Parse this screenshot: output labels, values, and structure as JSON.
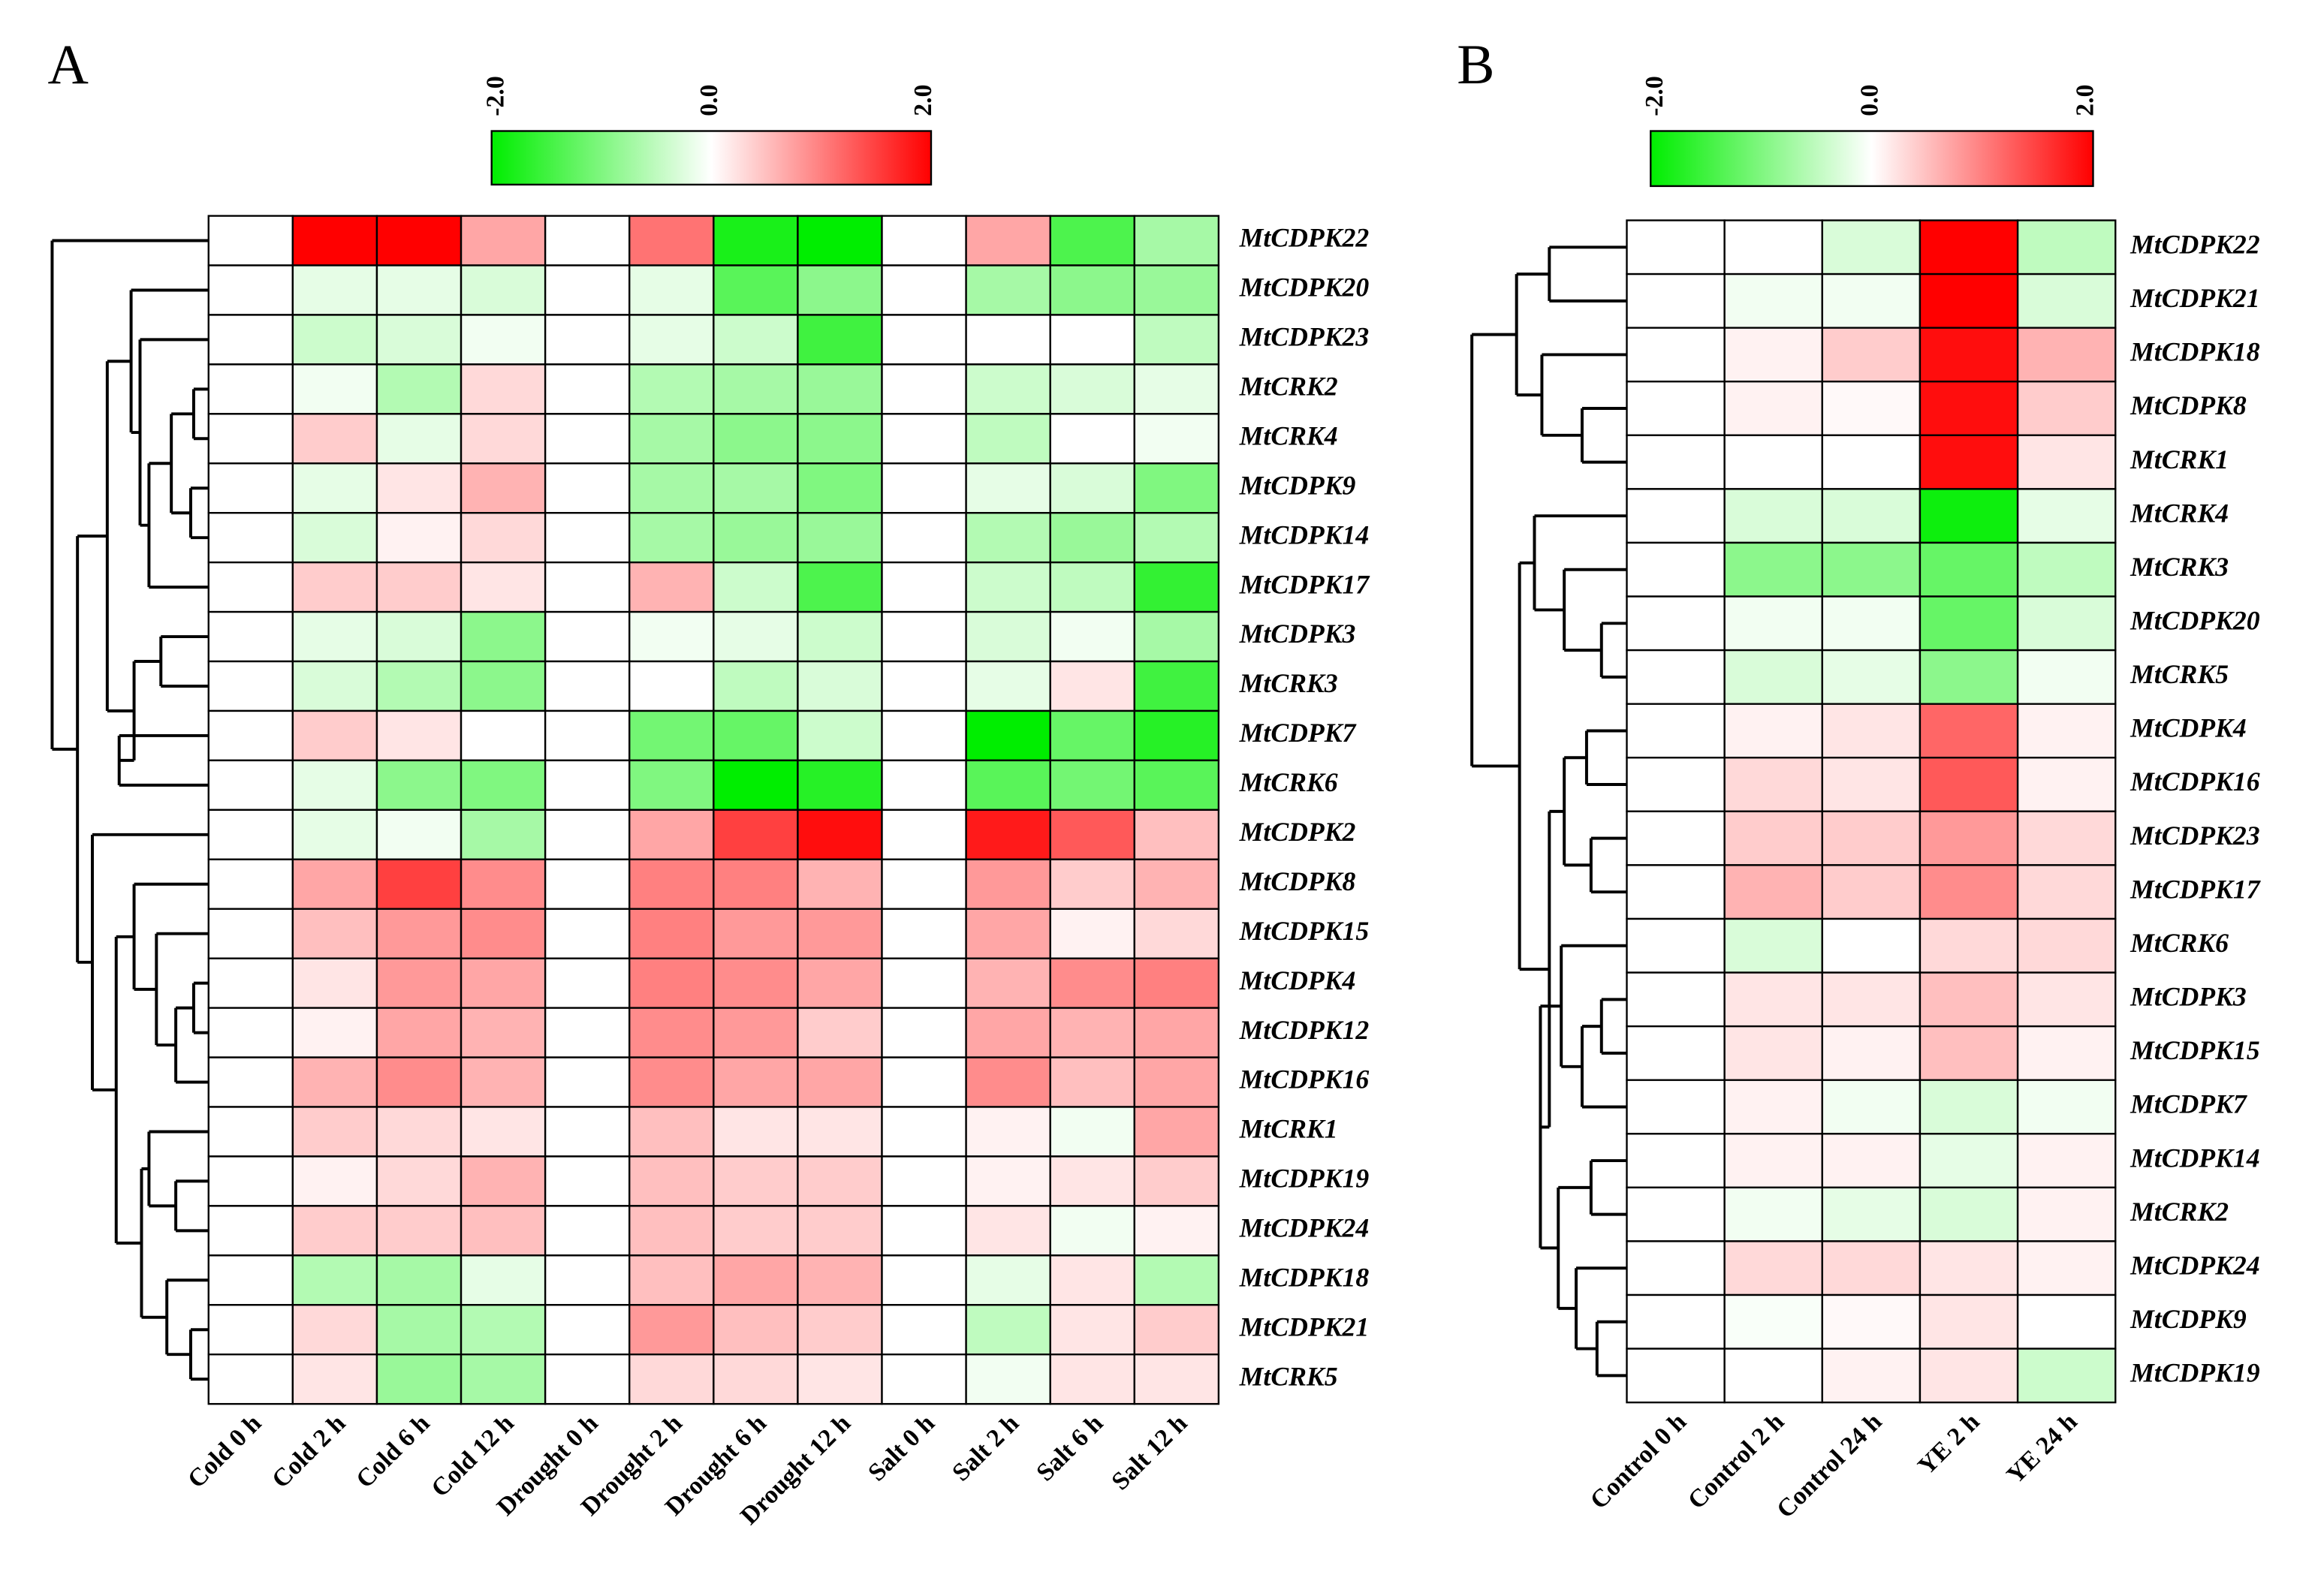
{
  "chart_data": [
    {
      "type": "heatmap",
      "panel_label": "A",
      "categories": [
        "Cold 0 h",
        "Cold 2 h",
        "Cold 6 h",
        "Cold 12 h",
        "Drought 0 h",
        "Drought 2 h",
        "Drought 6 h",
        "Drought 12 h",
        "Salt 0 h",
        "Salt 2 h",
        "Salt 6 h",
        "Salt 12 h"
      ],
      "rows": [
        "MtCDPK22",
        "MtCDPK20",
        "MtCDPK23",
        "MtCRK2",
        "MtCRK4",
        "MtCDPK9",
        "MtCDPK14",
        "MtCDPK17",
        "MtCDPK3",
        "MtCRK3",
        "MtCDPK7",
        "MtCRK6",
        "MtCDPK2",
        "MtCDPK8",
        "MtCDPK15",
        "MtCDPK4",
        "MtCDPK12",
        "MtCDPK16",
        "MtCRK1",
        "MtCDPK19",
        "MtCDPK24",
        "MtCDPK18",
        "MtCDPK21",
        "MtCRK5"
      ],
      "values": [
        [
          0,
          2.0,
          2.0,
          0.7,
          0,
          1.1,
          -1.8,
          -2.0,
          0,
          0.7,
          -1.4,
          -0.7
        ],
        [
          0,
          -0.2,
          -0.2,
          -0.3,
          0,
          -0.2,
          -1.3,
          -0.9,
          0,
          -0.7,
          -0.9,
          -0.8
        ],
        [
          0,
          -0.4,
          -0.3,
          -0.1,
          0,
          -0.2,
          -0.4,
          -1.5,
          0,
          0,
          0,
          -0.5
        ],
        [
          0,
          -0.1,
          -0.6,
          0.3,
          0,
          -0.6,
          -0.7,
          -0.8,
          0,
          -0.4,
          -0.3,
          -0.2
        ],
        [
          0,
          0.4,
          -0.2,
          0.3,
          0,
          -0.7,
          -0.9,
          -0.9,
          0,
          -0.5,
          0,
          -0.1
        ],
        [
          0,
          -0.2,
          0.2,
          0.6,
          0,
          -0.7,
          -0.7,
          -1.0,
          0,
          -0.2,
          -0.3,
          -1.0
        ],
        [
          0,
          -0.3,
          0.1,
          0.3,
          0,
          -0.7,
          -0.8,
          -0.8,
          0,
          -0.6,
          -0.8,
          -0.6
        ],
        [
          0,
          0.4,
          0.4,
          0.2,
          0,
          0.6,
          -0.4,
          -1.4,
          0,
          -0.4,
          -0.5,
          -1.6
        ],
        [
          0,
          -0.2,
          -0.3,
          -0.9,
          0,
          -0.1,
          -0.2,
          -0.4,
          0,
          -0.3,
          -0.1,
          -0.7
        ],
        [
          0,
          -0.3,
          -0.6,
          -0.9,
          0,
          0,
          -0.5,
          -0.3,
          0,
          -0.2,
          0.2,
          -1.5
        ],
        [
          0,
          0.4,
          0.2,
          0,
          0,
          -1.1,
          -1.2,
          -0.4,
          0,
          -2.0,
          -1.2,
          -1.7
        ],
        [
          0,
          -0.2,
          -0.9,
          -1.0,
          0,
          -1.0,
          -2.0,
          -1.7,
          0,
          -1.3,
          -1.1,
          -1.3
        ],
        [
          0,
          -0.2,
          -0.1,
          -0.7,
          0,
          0.7,
          1.5,
          1.9,
          0,
          1.8,
          1.3,
          0.5
        ],
        [
          0,
          0.7,
          1.5,
          0.9,
          0,
          1.0,
          1.0,
          0.6,
          0,
          0.8,
          0.4,
          0.6
        ],
        [
          0,
          0.5,
          0.8,
          0.9,
          0,
          1.0,
          0.8,
          0.8,
          0,
          0.7,
          0.1,
          0.3
        ],
        [
          0,
          0.2,
          0.8,
          0.7,
          0,
          1.0,
          0.9,
          0.7,
          0,
          0.6,
          0.9,
          1.0
        ],
        [
          0,
          0.1,
          0.7,
          0.6,
          0,
          0.9,
          0.8,
          0.4,
          0,
          0.7,
          0.6,
          0.7
        ],
        [
          0,
          0.6,
          0.9,
          0.6,
          0,
          0.9,
          0.7,
          0.7,
          0,
          0.9,
          0.5,
          0.7
        ],
        [
          0,
          0.4,
          0.3,
          0.2,
          0,
          0.5,
          0.2,
          0.2,
          0,
          0.1,
          -0.1,
          0.7
        ],
        [
          0,
          0.1,
          0.3,
          0.6,
          0,
          0.5,
          0.4,
          0.4,
          0,
          0.1,
          0.2,
          0.4
        ],
        [
          0,
          0.4,
          0.4,
          0.5,
          0,
          0.5,
          0.4,
          0.4,
          0,
          0.2,
          -0.1,
          0.1
        ],
        [
          0,
          -0.6,
          -0.7,
          -0.2,
          0,
          0.5,
          0.7,
          0.6,
          0,
          -0.2,
          0.2,
          -0.6
        ],
        [
          0,
          0.3,
          -0.7,
          -0.6,
          0,
          0.8,
          0.5,
          0.4,
          0,
          -0.5,
          0.2,
          0.4
        ],
        [
          0,
          0.2,
          -0.8,
          -0.7,
          0,
          0.3,
          0.3,
          0.2,
          0,
          -0.1,
          0.2,
          0.2
        ]
      ],
      "zlim": [
        -2,
        2
      ],
      "zticks": [
        {
          "value": -2,
          "label": "-2.0"
        },
        {
          "value": 0,
          "label": "0.0"
        },
        {
          "value": 2,
          "label": "2.0"
        }
      ],
      "colormap": [
        "#00ee00",
        "#ffffff",
        "#ff0000"
      ]
    },
    {
      "type": "heatmap",
      "panel_label": "B",
      "categories": [
        "Control 0 h",
        "Control 2 h",
        "Control 24 h",
        "YE 2 h",
        "YE 24 h"
      ],
      "rows": [
        "MtCDPK22",
        "MtCDPK21",
        "MtCDPK18",
        "MtCDPK8",
        "MtCRK1",
        "MtCRK4",
        "MtCRK3",
        "MtCDPK20",
        "MtCRK5",
        "MtCDPK4",
        "MtCDPK16",
        "MtCDPK23",
        "MtCDPK17",
        "MtCRK6",
        "MtCDPK3",
        "MtCDPK15",
        "MtCDPK7",
        "MtCDPK14",
        "MtCRK2",
        "MtCDPK24",
        "MtCDPK9",
        "MtCDPK19"
      ],
      "values": [
        [
          0,
          0,
          -0.3,
          2.0,
          -0.5
        ],
        [
          0,
          -0.1,
          -0.1,
          2.0,
          -0.3
        ],
        [
          0,
          0.1,
          0.4,
          1.9,
          0.6
        ],
        [
          0,
          0.1,
          0.05,
          1.9,
          0.4
        ],
        [
          0,
          0,
          0,
          1.9,
          0.2
        ],
        [
          0,
          -0.3,
          -0.3,
          -1.9,
          -0.2
        ],
        [
          0,
          -0.9,
          -0.9,
          -1.2,
          -0.5
        ],
        [
          0,
          -0.1,
          -0.1,
          -1.2,
          -0.3
        ],
        [
          0,
          -0.3,
          -0.2,
          -0.9,
          -0.1
        ],
        [
          0,
          0.1,
          0.2,
          1.2,
          0.1
        ],
        [
          0,
          0.3,
          0.2,
          1.3,
          0.1
        ],
        [
          0,
          0.4,
          0.4,
          0.8,
          0.3
        ],
        [
          0,
          0.6,
          0.4,
          0.9,
          0.3
        ],
        [
          0,
          -0.3,
          0,
          0.3,
          0.3
        ],
        [
          0,
          0.2,
          0.2,
          0.5,
          0.2
        ],
        [
          0,
          0.2,
          0.1,
          0.5,
          0.1
        ],
        [
          0,
          0.1,
          -0.1,
          -0.3,
          -0.1
        ],
        [
          0,
          0.1,
          0.1,
          -0.2,
          0.1
        ],
        [
          0,
          -0.1,
          -0.2,
          -0.3,
          0.1
        ],
        [
          0,
          0.3,
          0.3,
          0.2,
          0.1
        ],
        [
          0,
          -0.05,
          0.05,
          0.2,
          0
        ],
        [
          0,
          0,
          0.1,
          0.2,
          -0.4
        ]
      ],
      "zlim": [
        -2,
        2
      ],
      "zticks": [
        {
          "value": -2,
          "label": "-2.0"
        },
        {
          "value": 0,
          "label": "0.0"
        },
        {
          "value": 2,
          "label": "2.0"
        }
      ],
      "colormap": [
        "#00ee00",
        "#ffffff",
        "#ff0000"
      ]
    }
  ]
}
